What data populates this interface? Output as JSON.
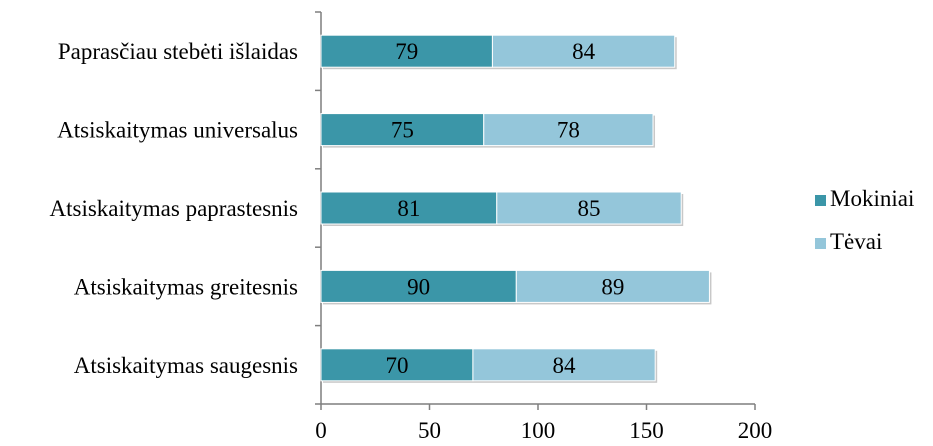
{
  "chart_data": {
    "type": "bar",
    "orientation": "horizontal",
    "stacked": true,
    "title": "",
    "xlabel": "",
    "ylabel": "",
    "categories": [
      "Paprasčiau stebėti išlaidas",
      "Atsiskaitymas universalus",
      "Atsiskaitymas paprastesnis",
      "Atsiskaitymas greitesnis",
      "Atsiskaitymas saugesnis"
    ],
    "series": [
      {
        "name": "Mokiniai",
        "color": "#3b96a8",
        "values": [
          79,
          75,
          81,
          90,
          70
        ]
      },
      {
        "name": "Tėvai",
        "color": "#94c6da",
        "values": [
          84,
          78,
          85,
          89,
          84
        ]
      }
    ],
    "xlim": [
      0,
      200
    ],
    "xticks": [
      "0",
      "50",
      "100",
      "150",
      "200"
    ],
    "grid": false,
    "data_labels": true,
    "legend_position": "right"
  }
}
